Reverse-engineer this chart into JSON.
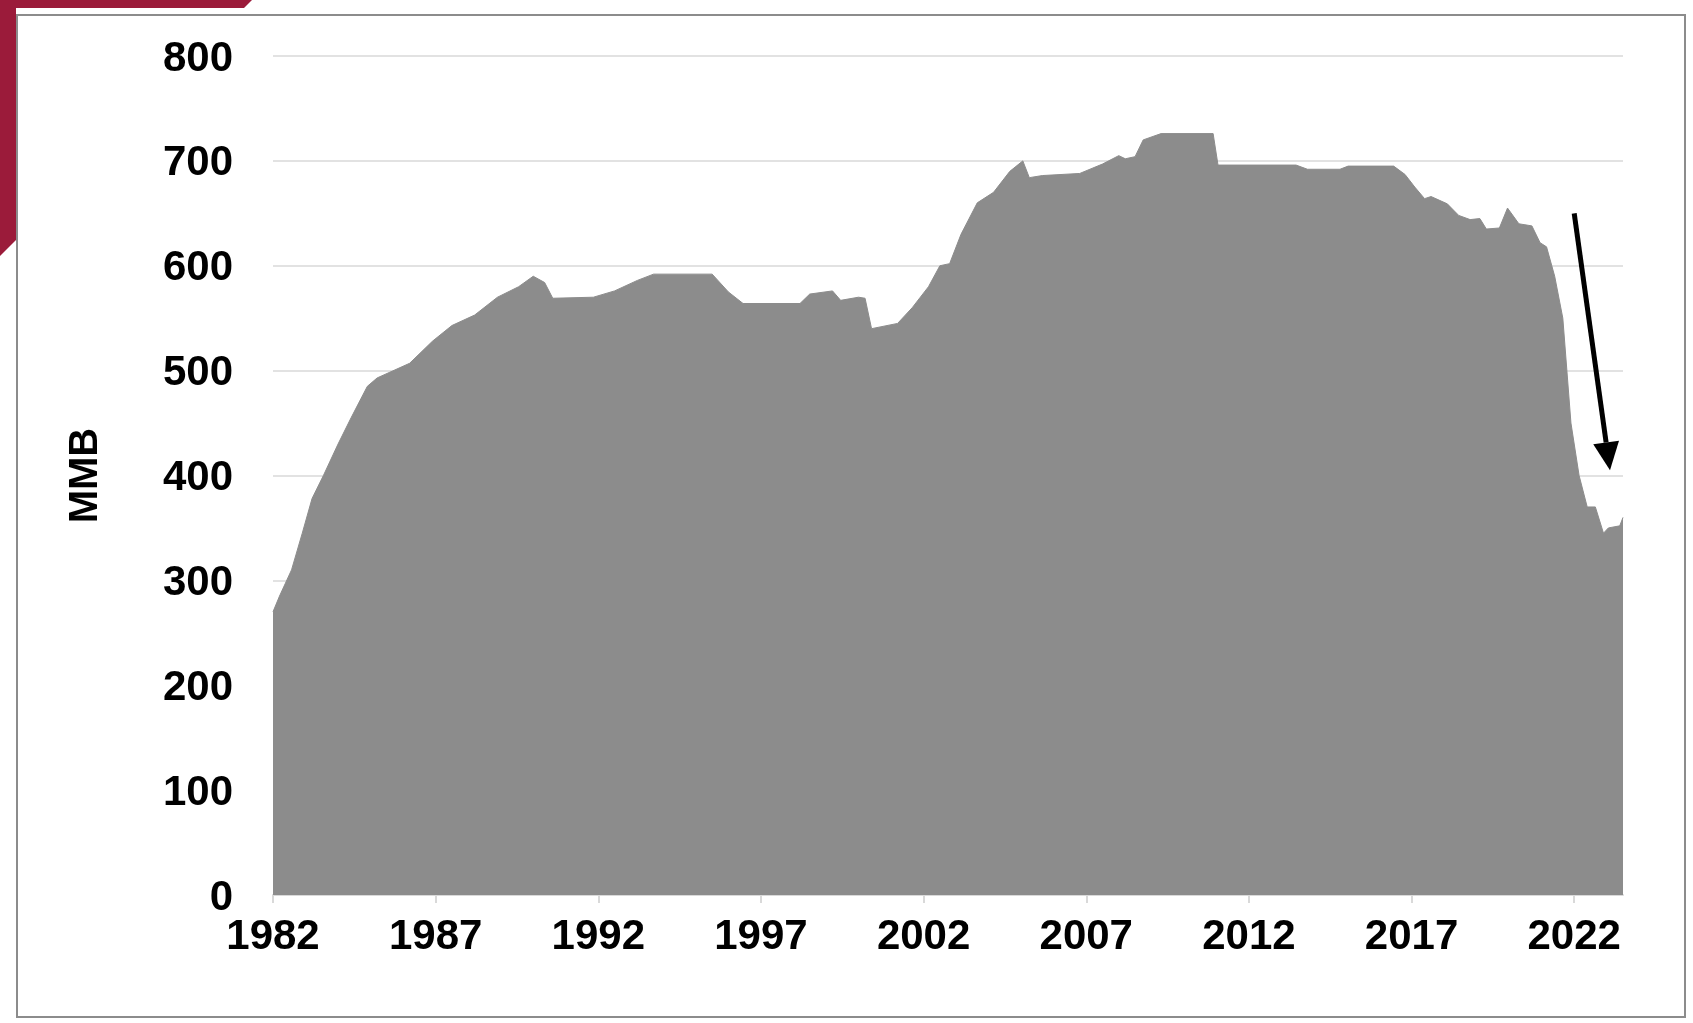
{
  "chart_data": {
    "type": "area",
    "ylabel": "MMB",
    "x": [
      1982.0,
      1982.2,
      1982.57,
      1982.9,
      1983.2,
      1983.55,
      1984.0,
      1984.4,
      1984.9,
      1985.2,
      1986.2,
      1986.9,
      1987.5,
      1988.2,
      1988.9,
      1989.55,
      1990.0,
      1990.35,
      1990.6,
      1991.85,
      1992.5,
      1993.2,
      1993.7,
      1995.5,
      1996.0,
      1996.45,
      1998.2,
      1998.5,
      1999.2,
      1999.45,
      2000.0,
      2000.2,
      2000.4,
      2001.2,
      2001.65,
      2002.15,
      2002.5,
      2002.8,
      2003.15,
      2003.65,
      2004.15,
      2004.65,
      2005.05,
      2005.25,
      2005.65,
      2006.8,
      2007.5,
      2008.0,
      2008.2,
      2008.5,
      2008.75,
      2009.3,
      2010.9,
      2011.05,
      2013.45,
      2013.8,
      2014.8,
      2015.05,
      2016.45,
      2016.8,
      2017.1,
      2017.4,
      2017.6,
      2018.1,
      2018.45,
      2018.8,
      2019.1,
      2019.3,
      2019.7,
      2019.95,
      2020.3,
      2020.7,
      2020.95,
      2021.15,
      2021.4,
      2021.65,
      2021.9,
      2022.15,
      2022.4,
      2022.65,
      2022.9,
      2023.05,
      2023.4,
      2023.5
    ],
    "series": [
      {
        "color": "#8c8c8c",
        "values": [
          270,
          285,
          310,
          345,
          378,
          400,
          430,
          455,
          485,
          493,
          507,
          528,
          543,
          553,
          570,
          580,
          590,
          584,
          569,
          570,
          576,
          586,
          592,
          592,
          575,
          564,
          564,
          573,
          576,
          567,
          570,
          569,
          540,
          545,
          560,
          580,
          600,
          602,
          630,
          660,
          670,
          690,
          700,
          684,
          686,
          688,
          697,
          705,
          702,
          704,
          720,
          726,
          726,
          696,
          696,
          692,
          692,
          695,
          695,
          687,
          675,
          664,
          666,
          659,
          648,
          644,
          645,
          635,
          636,
          655,
          640,
          638,
          622,
          618,
          590,
          550,
          450,
          400,
          370,
          370,
          345,
          350,
          352,
          360
        ]
      }
    ],
    "xlim": [
      1982,
      2023.5
    ],
    "xticks": [
      1982,
      1987,
      1992,
      1997,
      2002,
      2007,
      2012,
      2017,
      2022
    ],
    "ylim": [
      0,
      800
    ],
    "yticks": [
      0,
      100,
      200,
      300,
      400,
      500,
      600,
      700,
      800
    ],
    "grid": "y"
  }
}
